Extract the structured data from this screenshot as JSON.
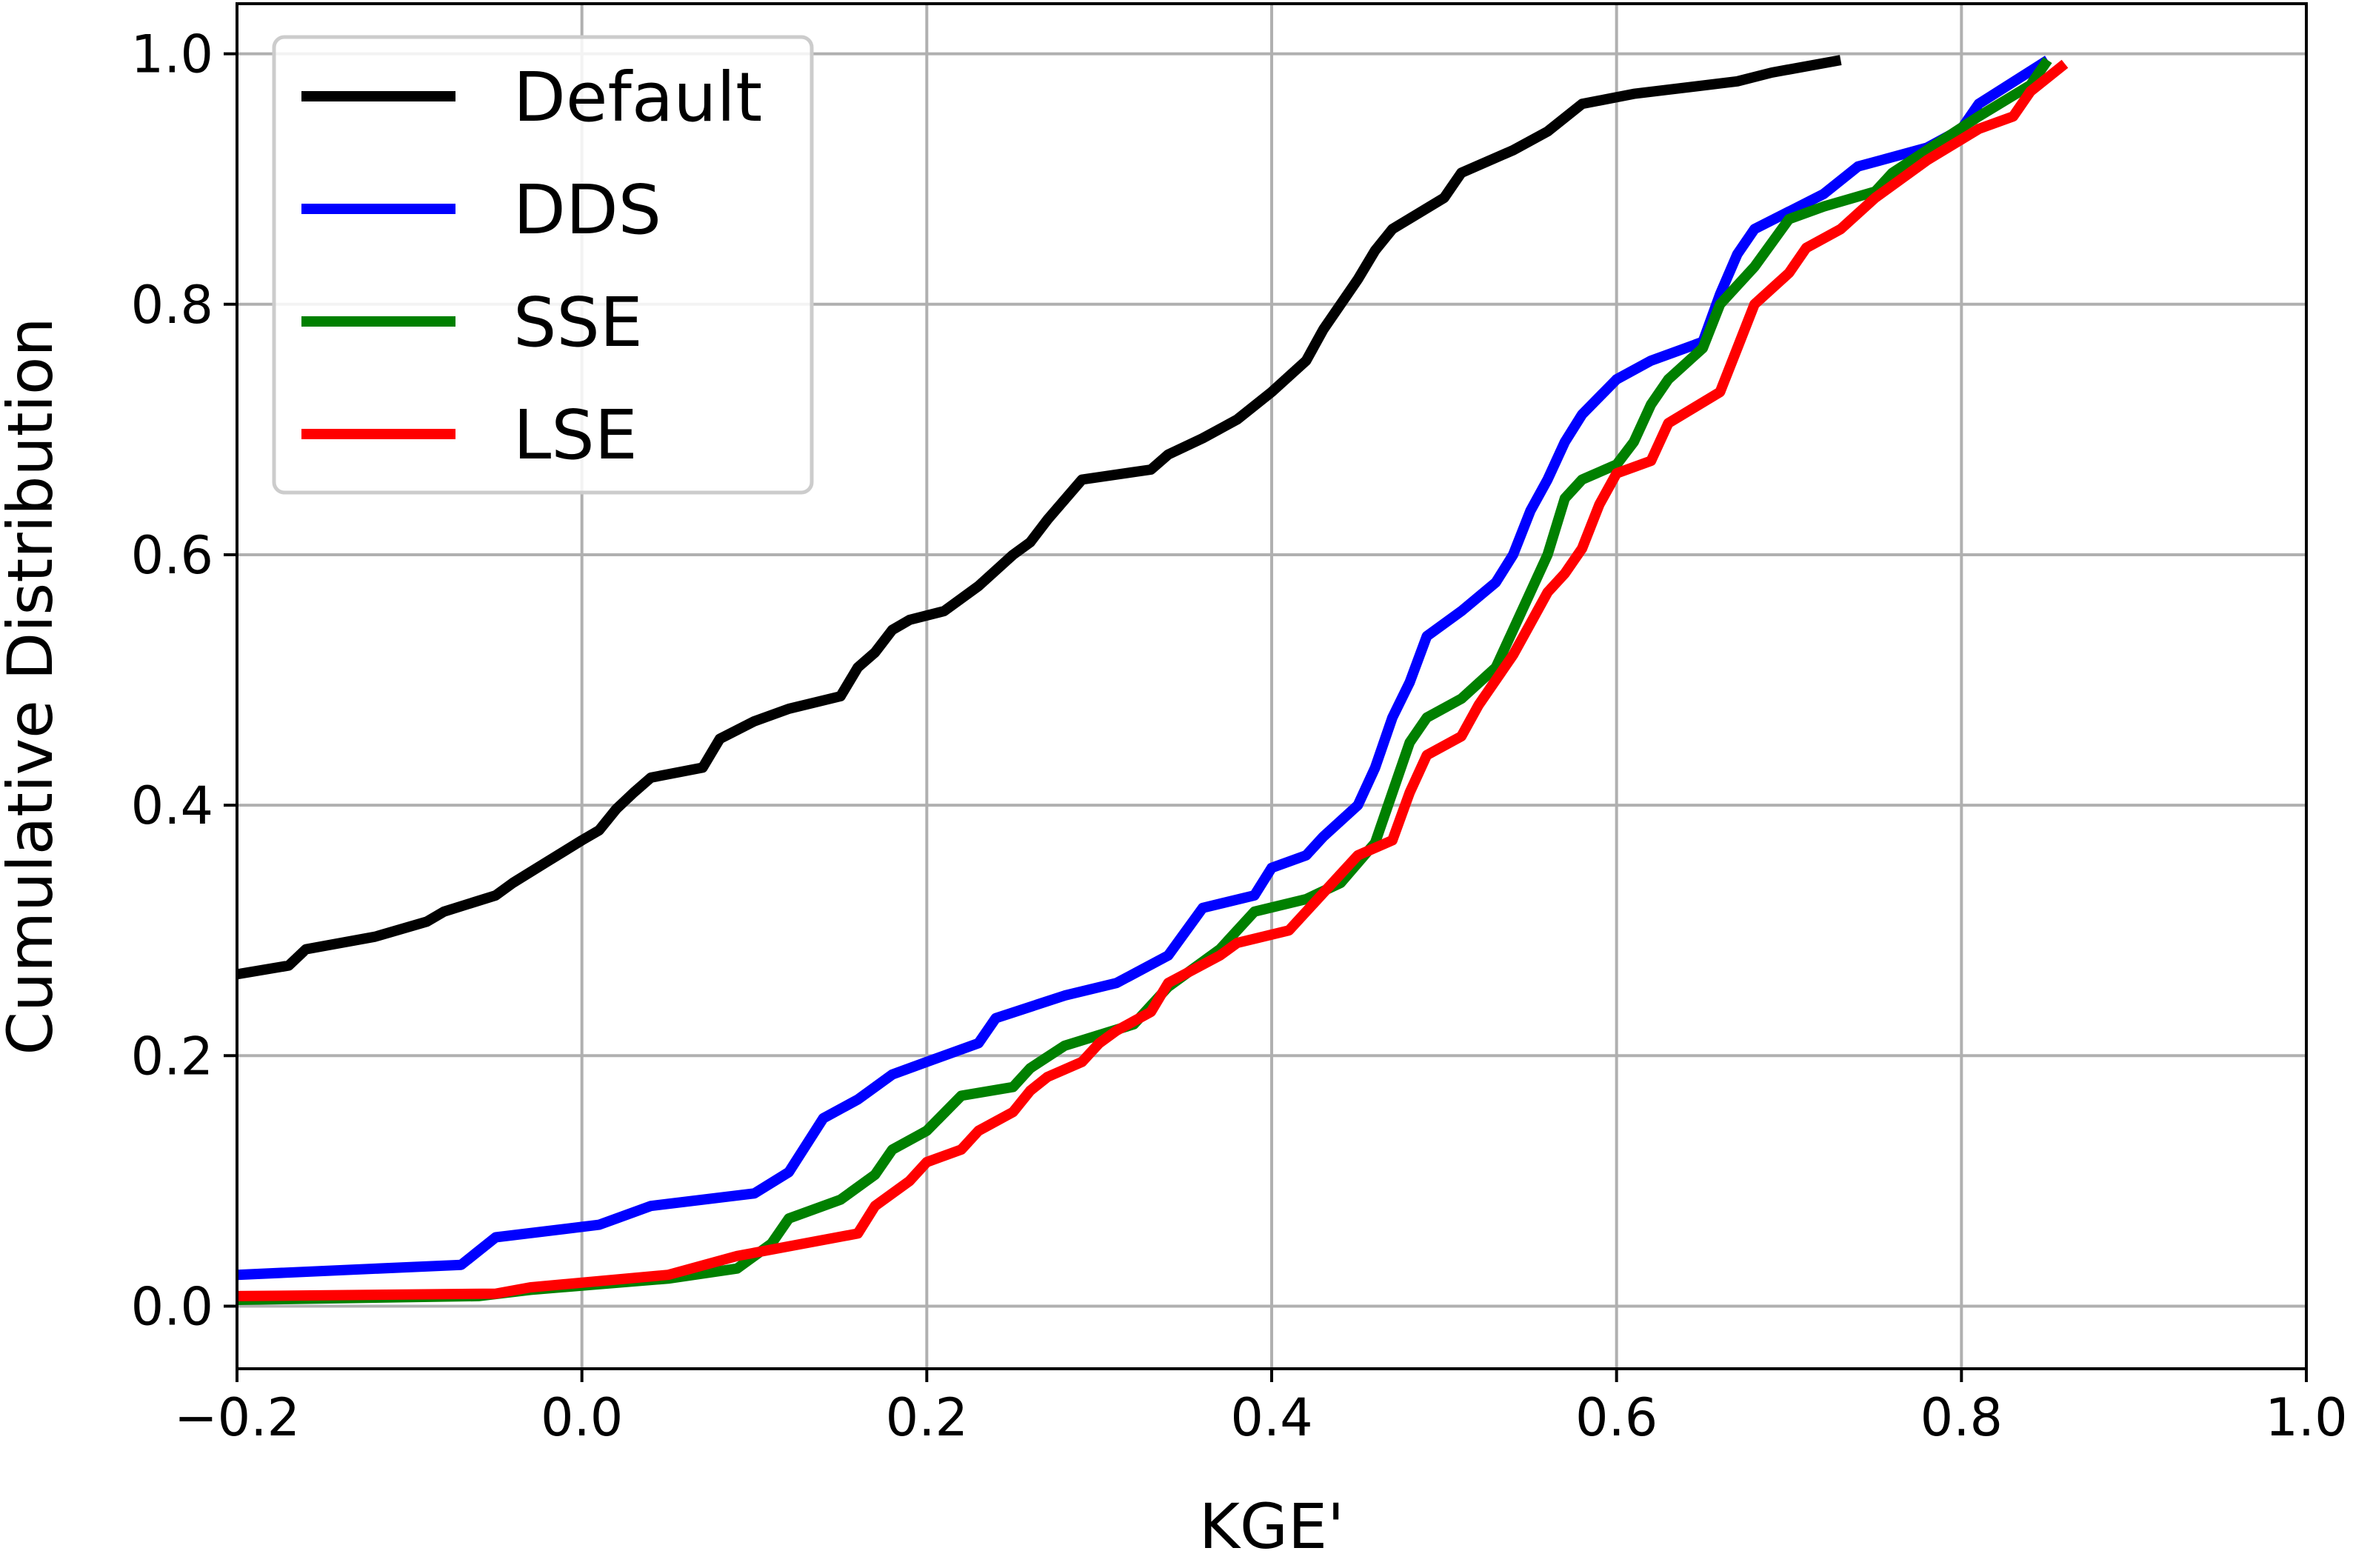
{
  "chart_data": {
    "type": "line",
    "title": "",
    "xlabel": "KGE'",
    "ylabel": "Cumulative Distribution",
    "xlim": [
      -0.2,
      1.0
    ],
    "ylim": [
      -0.05,
      1.04
    ],
    "xticks": [
      -0.2,
      0.0,
      0.2,
      0.4,
      0.6,
      0.8,
      1.0
    ],
    "xtick_labels": [
      "−0.2",
      "0.0",
      "0.2",
      "0.4",
      "0.6",
      "0.8",
      "1.0"
    ],
    "yticks": [
      0.0,
      0.2,
      0.4,
      0.6,
      0.8,
      1.0
    ],
    "ytick_labels": [
      "0.0",
      "0.2",
      "0.4",
      "0.6",
      "0.8",
      "1.0"
    ],
    "grid": true,
    "legend_position": "top-left",
    "series": [
      {
        "name": "Default",
        "color": "#000000",
        "points": [
          [
            -0.2,
            0.265
          ],
          [
            -0.17,
            0.272
          ],
          [
            -0.16,
            0.285
          ],
          [
            -0.12,
            0.295
          ],
          [
            -0.09,
            0.307
          ],
          [
            -0.08,
            0.315
          ],
          [
            -0.05,
            0.328
          ],
          [
            -0.04,
            0.338
          ],
          [
            -0.02,
            0.355
          ],
          [
            0.0,
            0.372
          ],
          [
            0.01,
            0.38
          ],
          [
            0.02,
            0.397
          ],
          [
            0.03,
            0.41
          ],
          [
            0.04,
            0.422
          ],
          [
            0.07,
            0.43
          ],
          [
            0.08,
            0.453
          ],
          [
            0.1,
            0.467
          ],
          [
            0.12,
            0.477
          ],
          [
            0.15,
            0.487
          ],
          [
            0.16,
            0.51
          ],
          [
            0.17,
            0.522
          ],
          [
            0.18,
            0.54
          ],
          [
            0.19,
            0.548
          ],
          [
            0.21,
            0.555
          ],
          [
            0.23,
            0.575
          ],
          [
            0.25,
            0.6
          ],
          [
            0.26,
            0.61
          ],
          [
            0.27,
            0.628
          ],
          [
            0.29,
            0.66
          ],
          [
            0.33,
            0.668
          ],
          [
            0.34,
            0.68
          ],
          [
            0.36,
            0.693
          ],
          [
            0.38,
            0.708
          ],
          [
            0.4,
            0.73
          ],
          [
            0.42,
            0.755
          ],
          [
            0.43,
            0.78
          ],
          [
            0.45,
            0.82
          ],
          [
            0.46,
            0.843
          ],
          [
            0.47,
            0.86
          ],
          [
            0.5,
            0.885
          ],
          [
            0.51,
            0.905
          ],
          [
            0.54,
            0.923
          ],
          [
            0.56,
            0.938
          ],
          [
            0.58,
            0.96
          ],
          [
            0.61,
            0.968
          ],
          [
            0.67,
            0.978
          ],
          [
            0.69,
            0.985
          ],
          [
            0.73,
            0.995
          ]
        ]
      },
      {
        "name": "DDS",
        "color": "#0000ff",
        "points": [
          [
            -0.2,
            0.025
          ],
          [
            -0.07,
            0.033
          ],
          [
            -0.05,
            0.055
          ],
          [
            0.01,
            0.065
          ],
          [
            0.04,
            0.08
          ],
          [
            0.1,
            0.09
          ],
          [
            0.12,
            0.107
          ],
          [
            0.14,
            0.15
          ],
          [
            0.16,
            0.165
          ],
          [
            0.18,
            0.185
          ],
          [
            0.2,
            0.195
          ],
          [
            0.23,
            0.21
          ],
          [
            0.24,
            0.23
          ],
          [
            0.28,
            0.248
          ],
          [
            0.31,
            0.258
          ],
          [
            0.34,
            0.28
          ],
          [
            0.36,
            0.318
          ],
          [
            0.39,
            0.328
          ],
          [
            0.4,
            0.35
          ],
          [
            0.42,
            0.36
          ],
          [
            0.43,
            0.375
          ],
          [
            0.45,
            0.4
          ],
          [
            0.46,
            0.43
          ],
          [
            0.47,
            0.47
          ],
          [
            0.48,
            0.498
          ],
          [
            0.49,
            0.535
          ],
          [
            0.51,
            0.555
          ],
          [
            0.53,
            0.578
          ],
          [
            0.54,
            0.6
          ],
          [
            0.55,
            0.635
          ],
          [
            0.56,
            0.66
          ],
          [
            0.57,
            0.69
          ],
          [
            0.58,
            0.712
          ],
          [
            0.6,
            0.74
          ],
          [
            0.62,
            0.755
          ],
          [
            0.65,
            0.77
          ],
          [
            0.66,
            0.808
          ],
          [
            0.67,
            0.84
          ],
          [
            0.68,
            0.86
          ],
          [
            0.72,
            0.888
          ],
          [
            0.74,
            0.91
          ],
          [
            0.78,
            0.925
          ],
          [
            0.8,
            0.94
          ],
          [
            0.81,
            0.96
          ],
          [
            0.85,
            0.995
          ]
        ]
      },
      {
        "name": "SSE",
        "color": "#008000",
        "points": [
          [
            -0.2,
            0.005
          ],
          [
            -0.06,
            0.008
          ],
          [
            -0.03,
            0.013
          ],
          [
            0.05,
            0.022
          ],
          [
            0.09,
            0.03
          ],
          [
            0.11,
            0.05
          ],
          [
            0.12,
            0.07
          ],
          [
            0.15,
            0.085
          ],
          [
            0.16,
            0.095
          ],
          [
            0.17,
            0.105
          ],
          [
            0.18,
            0.125
          ],
          [
            0.2,
            0.14
          ],
          [
            0.22,
            0.168
          ],
          [
            0.25,
            0.175
          ],
          [
            0.26,
            0.19
          ],
          [
            0.28,
            0.208
          ],
          [
            0.32,
            0.225
          ],
          [
            0.34,
            0.255
          ],
          [
            0.37,
            0.285
          ],
          [
            0.38,
            0.3
          ],
          [
            0.39,
            0.315
          ],
          [
            0.42,
            0.325
          ],
          [
            0.44,
            0.338
          ],
          [
            0.46,
            0.37
          ],
          [
            0.47,
            0.41
          ],
          [
            0.48,
            0.45
          ],
          [
            0.49,
            0.47
          ],
          [
            0.51,
            0.485
          ],
          [
            0.53,
            0.51
          ],
          [
            0.54,
            0.54
          ],
          [
            0.55,
            0.57
          ],
          [
            0.56,
            0.6
          ],
          [
            0.57,
            0.645
          ],
          [
            0.58,
            0.66
          ],
          [
            0.6,
            0.672
          ],
          [
            0.61,
            0.69
          ],
          [
            0.62,
            0.72
          ],
          [
            0.63,
            0.74
          ],
          [
            0.65,
            0.765
          ],
          [
            0.66,
            0.8
          ],
          [
            0.68,
            0.83
          ],
          [
            0.7,
            0.868
          ],
          [
            0.72,
            0.878
          ],
          [
            0.75,
            0.89
          ],
          [
            0.76,
            0.905
          ],
          [
            0.81,
            0.95
          ],
          [
            0.84,
            0.975
          ],
          [
            0.85,
            0.995
          ]
        ]
      },
      {
        "name": "LSE",
        "color": "#ff0000",
        "points": [
          [
            -0.2,
            0.008
          ],
          [
            -0.05,
            0.01
          ],
          [
            -0.03,
            0.015
          ],
          [
            0.05,
            0.025
          ],
          [
            0.09,
            0.04
          ],
          [
            0.16,
            0.058
          ],
          [
            0.17,
            0.08
          ],
          [
            0.19,
            0.1
          ],
          [
            0.2,
            0.115
          ],
          [
            0.22,
            0.125
          ],
          [
            0.23,
            0.14
          ],
          [
            0.25,
            0.155
          ],
          [
            0.26,
            0.172
          ],
          [
            0.27,
            0.183
          ],
          [
            0.29,
            0.195
          ],
          [
            0.3,
            0.21
          ],
          [
            0.31,
            0.22
          ],
          [
            0.33,
            0.235
          ],
          [
            0.34,
            0.258
          ],
          [
            0.37,
            0.28
          ],
          [
            0.38,
            0.29
          ],
          [
            0.41,
            0.3
          ],
          [
            0.42,
            0.315
          ],
          [
            0.44,
            0.345
          ],
          [
            0.45,
            0.36
          ],
          [
            0.47,
            0.372
          ],
          [
            0.48,
            0.41
          ],
          [
            0.49,
            0.44
          ],
          [
            0.51,
            0.455
          ],
          [
            0.52,
            0.48
          ],
          [
            0.54,
            0.52
          ],
          [
            0.55,
            0.545
          ],
          [
            0.56,
            0.57
          ],
          [
            0.57,
            0.585
          ],
          [
            0.58,
            0.605
          ],
          [
            0.59,
            0.64
          ],
          [
            0.6,
            0.665
          ],
          [
            0.62,
            0.675
          ],
          [
            0.63,
            0.705
          ],
          [
            0.66,
            0.73
          ],
          [
            0.67,
            0.765
          ],
          [
            0.68,
            0.8
          ],
          [
            0.7,
            0.825
          ],
          [
            0.71,
            0.845
          ],
          [
            0.73,
            0.86
          ],
          [
            0.75,
            0.885
          ],
          [
            0.78,
            0.915
          ],
          [
            0.81,
            0.94
          ],
          [
            0.83,
            0.95
          ],
          [
            0.84,
            0.97
          ],
          [
            0.86,
            0.992
          ]
        ]
      }
    ]
  }
}
